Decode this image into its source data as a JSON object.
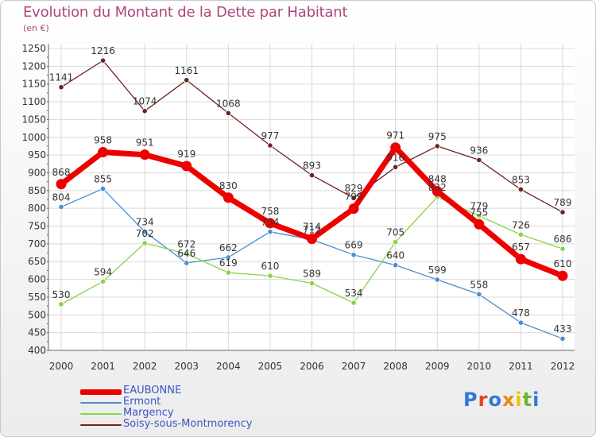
{
  "title": "Evolution du Montant de la Dette par Habitant",
  "subtitle": "(en €)",
  "logo": {
    "letters": [
      "P",
      "r",
      "o",
      "x",
      "i",
      "t",
      "i"
    ],
    "colors": [
      "#2f7ad8",
      "#e5402a",
      "#2f7ad8",
      "#e58a1c",
      "#f2c300",
      "#6ab536",
      "#2f7ad8"
    ]
  },
  "chart_data": {
    "type": "line",
    "x": [
      "2000",
      "2001",
      "2002",
      "2003",
      "2004",
      "2005",
      "2006",
      "2007",
      "2008",
      "2009",
      "2010",
      "2011",
      "2012"
    ],
    "ylim": [
      400,
      1250
    ],
    "yticks": [
      400,
      450,
      500,
      550,
      600,
      650,
      700,
      750,
      800,
      850,
      900,
      950,
      1000,
      1050,
      1100,
      1150,
      1200,
      1250
    ],
    "grid": true,
    "legend_position": "bottom-left",
    "series": [
      {
        "name": "EAUBONNE",
        "color": "#ee0000",
        "values": [
          868,
          958,
          951,
          919,
          830,
          758,
          714,
          799,
          971,
          848,
          755,
          657,
          610
        ]
      },
      {
        "name": "Ermont",
        "color": "#4a8dce",
        "values": [
          804,
          855,
          734,
          646,
          662,
          734,
          712,
          669,
          640,
          599,
          558,
          478,
          433
        ]
      },
      {
        "name": "Margency",
        "color": "#86d44a",
        "values": [
          530,
          594,
          702,
          672,
          619,
          610,
          589,
          534,
          705,
          832,
          779,
          726,
          686
        ]
      },
      {
        "name": "Soisy-sous-Montmorency",
        "color": "#6e2222",
        "values": [
          1141,
          1216,
          1074,
          1161,
          1068,
          977,
          893,
          829,
          916,
          975,
          936,
          853,
          789
        ]
      }
    ]
  }
}
